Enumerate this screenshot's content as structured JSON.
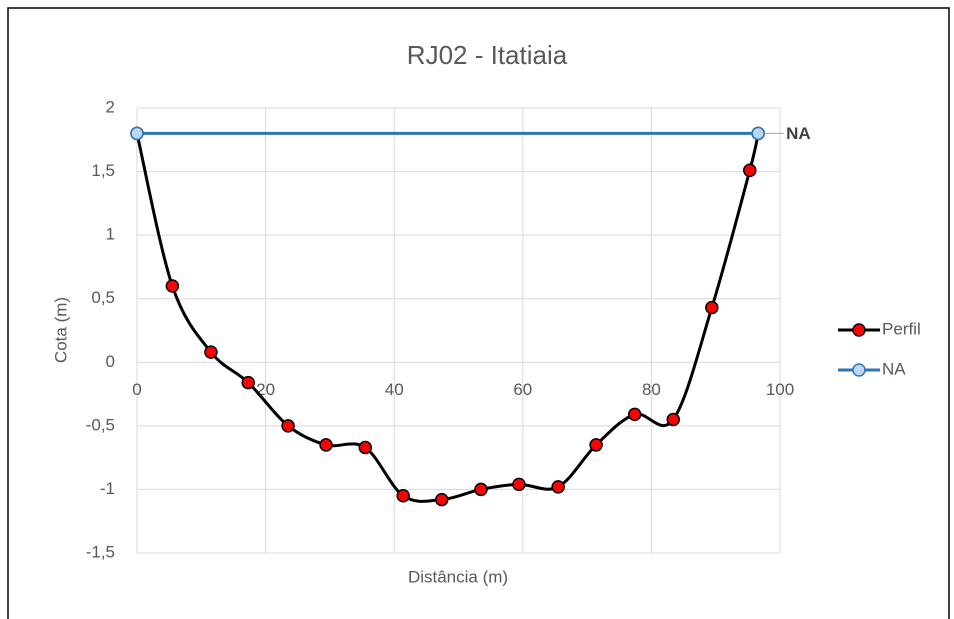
{
  "chart_data": {
    "type": "scatter",
    "title": "RJ02 - Itatiaia",
    "xlabel": "Distância (m)",
    "ylabel": "Cota (m)",
    "xlim": [
      0,
      100
    ],
    "xticks": [
      0,
      20,
      40,
      60,
      80,
      100
    ],
    "ylim": [
      -1.5,
      2
    ],
    "yticks": [
      {
        "value": -1.5,
        "label": "-1,5"
      },
      -1,
      {
        "value": -0.5,
        "label": "-0,5"
      },
      0,
      {
        "value": 0.5,
        "label": "0,5"
      },
      1,
      {
        "value": 1.5,
        "label": "1,5"
      },
      2
    ],
    "grid": true,
    "legend": "right",
    "series": [
      {
        "name": "Perfil",
        "color": "#000000",
        "marker_color": "#ff0000",
        "x": [
          0,
          5.5,
          11.5,
          17.3,
          23.5,
          29.4,
          35.5,
          41.4,
          47.4,
          53.5,
          59.4,
          65.5,
          71.4,
          77.4,
          83.4,
          89.4,
          95.3,
          96.6
        ],
        "values": [
          1.8,
          0.6,
          0.08,
          -0.16,
          -0.5,
          -0.65,
          -0.67,
          -1.05,
          -1.08,
          -1.0,
          -0.96,
          -0.98,
          -0.65,
          -0.41,
          -0.45,
          0.43,
          1.51,
          1.8
        ]
      },
      {
        "name": "NA",
        "color": "#2e75b6",
        "marker_color": "#bdd7ee",
        "x": [
          0,
          96.6
        ],
        "values": [
          1.8,
          1.8
        ]
      }
    ],
    "annotation": "NA"
  }
}
